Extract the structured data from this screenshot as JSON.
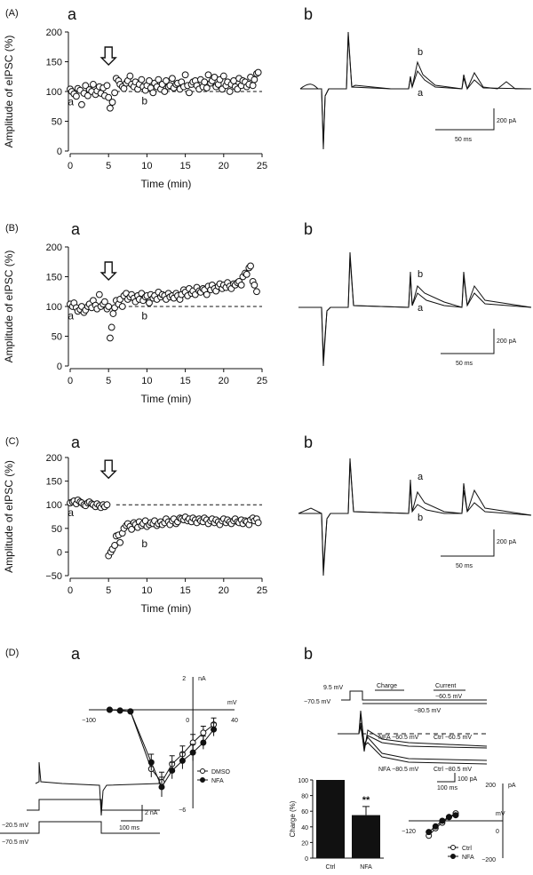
{
  "panels": [
    {
      "id": "A",
      "label": "(A)",
      "sublabel_a": "a",
      "sublabel_b": "b",
      "trace_label_top": "b",
      "trace_label_bottom": "a",
      "scalebar": {
        "y": "200 pA",
        "x": "50 ms"
      },
      "chart_data": {
        "type": "scatter",
        "title": "",
        "xlabel": "Time (min)",
        "ylabel": "Amplitude of eIPSC (%)",
        "xlim": [
          0,
          25
        ],
        "ylim": [
          0,
          200
        ],
        "xticks": [
          "0",
          "5",
          "10",
          "15",
          "20",
          "25"
        ],
        "yticks": [
          "0",
          "50",
          "100",
          "150",
          "200"
        ],
        "baseline": 100,
        "point_label_a": "a",
        "point_label_b": "b",
        "x": [
          0.0,
          0.2,
          0.5,
          0.8,
          1.0,
          1.3,
          1.5,
          1.8,
          2.0,
          2.3,
          2.5,
          2.8,
          3.0,
          3.3,
          3.5,
          3.8,
          4.0,
          4.3,
          4.5,
          4.8,
          5.0,
          5.2,
          5.5,
          5.8,
          6.0,
          6.3,
          6.5,
          6.8,
          7.0,
          7.3,
          7.5,
          7.8,
          8.0,
          8.3,
          8.5,
          8.8,
          9.0,
          9.3,
          9.5,
          9.8,
          10.0,
          10.3,
          10.5,
          10.8,
          11.0,
          11.3,
          11.5,
          11.8,
          12.0,
          12.3,
          12.5,
          12.8,
          13.0,
          13.3,
          13.5,
          13.8,
          14.0,
          14.3,
          14.5,
          14.8,
          15.0,
          15.3,
          15.5,
          15.8,
          16.0,
          16.3,
          16.5,
          16.8,
          17.0,
          17.3,
          17.5,
          17.8,
          18.0,
          18.3,
          18.5,
          18.8,
          19.0,
          19.3,
          19.5,
          19.8,
          20.0,
          20.3,
          20.5,
          20.8,
          21.0,
          21.3,
          21.5,
          21.8,
          22.0,
          22.3,
          22.5,
          22.8,
          23.0,
          23.3,
          23.5,
          23.8,
          24.0,
          24.3,
          24.5
        ],
        "y": [
          104,
          100,
          96,
          92,
          105,
          102,
          78,
          97,
          110,
          93,
          103,
          100,
          112,
          95,
          101,
          108,
          97,
          106,
          93,
          110,
          90,
          72,
          82,
          98,
          122,
          118,
          112,
          108,
          105,
          114,
          118,
          126,
          112,
          108,
          116,
          104,
          112,
          120,
          108,
          102,
          110,
          118,
          106,
          98,
          114,
          108,
          120,
          104,
          112,
          100,
          118,
          108,
          110,
          122,
          106,
          112,
          114,
          104,
          116,
          108,
          128,
          110,
          98,
          112,
          116,
          118,
          110,
          104,
          120,
          108,
          116,
          106,
          128,
          114,
          118,
          124,
          108,
          112,
          120,
          104,
          126,
          110,
          116,
          100,
          112,
          118,
          108,
          104,
          122,
          110,
          118,
          116,
          108,
          112,
          124,
          110,
          120,
          130,
          132
        ]
      }
    },
    {
      "id": "B",
      "label": "(B)",
      "sublabel_a": "a",
      "sublabel_b": "b",
      "trace_label_top": "b",
      "trace_label_bottom": "a",
      "scalebar": {
        "y": "200 pA",
        "x": "50 ms"
      },
      "chart_data": {
        "type": "scatter",
        "title": "",
        "xlabel": "Time (min)",
        "ylabel": "Amplitude of eIPSC (%)",
        "xlim": [
          0,
          25
        ],
        "ylim": [
          0,
          200
        ],
        "xticks": [
          "0",
          "5",
          "10",
          "15",
          "20",
          "25"
        ],
        "yticks": [
          "0",
          "50",
          "100",
          "150",
          "200"
        ],
        "baseline": 100,
        "point_label_a": "a",
        "point_label_b": "b",
        "x": [
          0.0,
          0.3,
          0.5,
          0.8,
          1.0,
          1.3,
          1.5,
          1.8,
          2.0,
          2.3,
          2.5,
          2.8,
          3.0,
          3.3,
          3.5,
          3.8,
          4.0,
          4.3,
          4.5,
          4.8,
          5.0,
          5.2,
          5.4,
          5.6,
          5.8,
          6.0,
          6.3,
          6.5,
          6.8,
          7.0,
          7.3,
          7.5,
          7.8,
          8.0,
          8.3,
          8.5,
          8.8,
          9.0,
          9.3,
          9.5,
          9.8,
          10.0,
          10.3,
          10.5,
          10.8,
          11.0,
          11.3,
          11.5,
          11.8,
          12.0,
          12.3,
          12.5,
          12.8,
          13.0,
          13.3,
          13.5,
          13.8,
          14.0,
          14.3,
          14.5,
          14.8,
          15.0,
          15.3,
          15.5,
          15.8,
          16.0,
          16.3,
          16.5,
          16.8,
          17.0,
          17.3,
          17.5,
          17.8,
          18.0,
          18.3,
          18.5,
          18.8,
          19.0,
          19.3,
          19.5,
          19.8,
          20.0,
          20.3,
          20.5,
          20.8,
          21.0,
          21.3,
          21.5,
          21.8,
          22.0,
          22.3,
          22.5,
          22.8,
          23.0,
          23.3,
          23.5,
          23.8,
          24.0,
          24.3
        ],
        "y": [
          104,
          100,
          106,
          98,
          92,
          95,
          100,
          90,
          94,
          100,
          104,
          98,
          110,
          102,
          96,
          120,
          100,
          104,
          108,
          96,
          100,
          47,
          65,
          88,
          98,
          110,
          104,
          112,
          100,
          118,
          122,
          112,
          116,
          120,
          114,
          108,
          118,
          112,
          122,
          110,
          116,
          118,
          106,
          120,
          114,
          118,
          112,
          124,
          116,
          120,
          118,
          112,
          122,
          116,
          118,
          114,
          122,
          118,
          112,
          120,
          128,
          124,
          118,
          130,
          122,
          126,
          120,
          132,
          126,
          124,
          130,
          128,
          120,
          134,
          128,
          136,
          130,
          126,
          134,
          138,
          130,
          136,
          132,
          140,
          134,
          130,
          138,
          136,
          140,
          142,
          136,
          150,
          156,
          154,
          165,
          168,
          142,
          136,
          125
        ]
      }
    },
    {
      "id": "C",
      "label": "(C)",
      "sublabel_a": "a",
      "sublabel_b": "b",
      "trace_label_top": "a",
      "trace_label_bottom": "b",
      "scalebar": {
        "y": "200 pA",
        "x": "50 ms"
      },
      "chart_data": {
        "type": "scatter",
        "title": "",
        "xlabel": "Time (min)",
        "ylabel": "Amplitude of eIPSC (%)",
        "xlim": [
          0,
          25
        ],
        "ylim": [
          -50,
          200
        ],
        "xticks": [
          "0",
          "5",
          "10",
          "15",
          "20",
          "25"
        ],
        "yticks": [
          "−50",
          "0",
          "50",
          "100",
          "150",
          "200"
        ],
        "baseline": 100,
        "point_label_a": "a",
        "point_label_b": "b",
        "x": [
          0.0,
          0.3,
          0.5,
          0.8,
          1.0,
          1.3,
          1.5,
          1.8,
          2.0,
          2.3,
          2.5,
          2.8,
          3.0,
          3.3,
          3.5,
          3.8,
          4.0,
          4.3,
          4.5,
          4.8,
          5.0,
          5.3,
          5.5,
          5.8,
          6.0,
          6.3,
          6.5,
          6.8,
          7.0,
          7.3,
          7.5,
          7.8,
          8.0,
          8.3,
          8.5,
          8.8,
          9.0,
          9.3,
          9.5,
          9.8,
          10.0,
          10.3,
          10.5,
          10.8,
          11.0,
          11.3,
          11.5,
          11.8,
          12.0,
          12.3,
          12.5,
          12.8,
          13.0,
          13.3,
          13.5,
          13.8,
          14.0,
          14.3,
          14.5,
          14.8,
          15.0,
          15.3,
          15.5,
          15.8,
          16.0,
          16.3,
          16.5,
          16.8,
          17.0,
          17.3,
          17.5,
          17.8,
          18.0,
          18.3,
          18.5,
          18.8,
          19.0,
          19.3,
          19.5,
          19.8,
          20.0,
          20.3,
          20.5,
          20.8,
          21.0,
          21.3,
          21.5,
          21.8,
          22.0,
          22.3,
          22.5,
          22.8,
          23.0,
          23.3,
          23.5,
          23.8,
          24.0,
          24.3,
          24.5
        ],
        "y": [
          104,
          106,
          108,
          102,
          110,
          106,
          104,
          100,
          98,
          104,
          106,
          102,
          100,
          96,
          102,
          98,
          94,
          100,
          96,
          100,
          -8,
          0,
          6,
          14,
          34,
          36,
          20,
          40,
          50,
          56,
          60,
          54,
          48,
          62,
          58,
          52,
          64,
          56,
          60,
          66,
          54,
          58,
          62,
          60,
          66,
          56,
          60,
          64,
          58,
          62,
          70,
          64,
          58,
          66,
          70,
          60,
          64,
          72,
          70,
          68,
          74,
          66,
          70,
          64,
          72,
          68,
          62,
          70,
          66,
          64,
          72,
          68,
          60,
          66,
          70,
          62,
          68,
          64,
          58,
          66,
          70,
          62,
          68,
          64,
          60,
          66,
          70,
          64,
          62,
          68,
          60,
          66,
          64,
          58,
          68,
          72,
          66,
          70,
          62
        ]
      }
    },
    {
      "id": "D",
      "label": "(D)",
      "sublabel_a": "a",
      "sublabel_b": "b",
      "chart_data": [
        {
          "type": "line",
          "title": "",
          "xlabel": "mV",
          "ylabel": "nA",
          "xlim": [
            -100,
            40
          ],
          "ylim": [
            -6,
            2
          ],
          "xticks": [
            "−100",
            "0",
            "40"
          ],
          "yticks": [
            "2",
            "−6"
          ],
          "legend": "bottom-right",
          "series": [
            {
              "name": "DMSO",
              "marker": "open",
              "x": [
                -80,
                -70,
                -60,
                -40,
                -30,
                -20,
                -10,
                0,
                10,
                20
              ],
              "y": [
                0,
                -0.05,
                -0.1,
                -3.6,
                -4.4,
                -3.3,
                -2.7,
                -2.0,
                -1.4,
                -0.9
              ],
              "err": [
                0,
                0,
                0,
                0.5,
                0.6,
                0.5,
                0.5,
                0.5,
                0.4,
                0.4
              ]
            },
            {
              "name": "NFA",
              "marker": "filled",
              "x": [
                -80,
                -70,
                -60,
                -40,
                -30,
                -20,
                -10,
                0,
                10,
                20
              ],
              "y": [
                0,
                -0.05,
                -0.1,
                -3.2,
                -4.7,
                -3.7,
                -3.1,
                -2.6,
                -2.0,
                -1.2
              ],
              "err": [
                0,
                0,
                0,
                0.5,
                0.6,
                0.5,
                0.5,
                0.5,
                0.4,
                0.4
              ]
            }
          ]
        },
        {
          "type": "bar",
          "title": "",
          "xlabel": "",
          "ylabel": "Charge (%)",
          "categories": [
            "Ctrl",
            "NFA"
          ],
          "values": [
            100,
            55
          ],
          "err": [
            0,
            11
          ],
          "ylim": [
            0,
            100
          ],
          "yticks": [
            "0",
            "20",
            "40",
            "60",
            "80",
            "100"
          ],
          "annotation": "**"
        },
        {
          "type": "line",
          "title": "",
          "xlabel": "mV",
          "ylabel": "pA",
          "xlim": [
            -140,
            0
          ],
          "ylim": [
            -200,
            200
          ],
          "xticks": [
            "−120",
            "0"
          ],
          "yticks": [
            "200",
            "−200"
          ],
          "legend": "bottom-right",
          "series": [
            {
              "name": "Ctrl",
              "marker": "open",
              "x": [
                -110,
                -100,
                -90,
                -80,
                -70
              ],
              "y": [
                -80,
                -40,
                -10,
                20,
                40
              ]
            },
            {
              "name": "NFA",
              "marker": "filled",
              "x": [
                -110,
                -100,
                -90,
                -80,
                -70
              ],
              "y": [
                -60,
                -30,
                0,
                20,
                30
              ]
            }
          ]
        }
      ],
      "iv_protocol": {
        "v_hold": "−70.5 mV",
        "v_step": "−20.5 mV",
        "scale_y": "2 nA",
        "scale_x": "100 ms"
      },
      "charge_protocol": {
        "v_pre": "9.5 mV",
        "v_hold": "−70.5 mV",
        "v_test1": "−60.5 mV",
        "v_test2": "−80.5 mV",
        "window1": "Charge",
        "window2": "Current",
        "trace_labels": [
          "NFA −60.5 mV",
          "Ctrl −60.5 mV",
          "NFA −80.5 mV",
          "Ctrl −80.5 mV"
        ],
        "scale_y": "100 pA",
        "scale_x": "100 ms"
      }
    }
  ]
}
